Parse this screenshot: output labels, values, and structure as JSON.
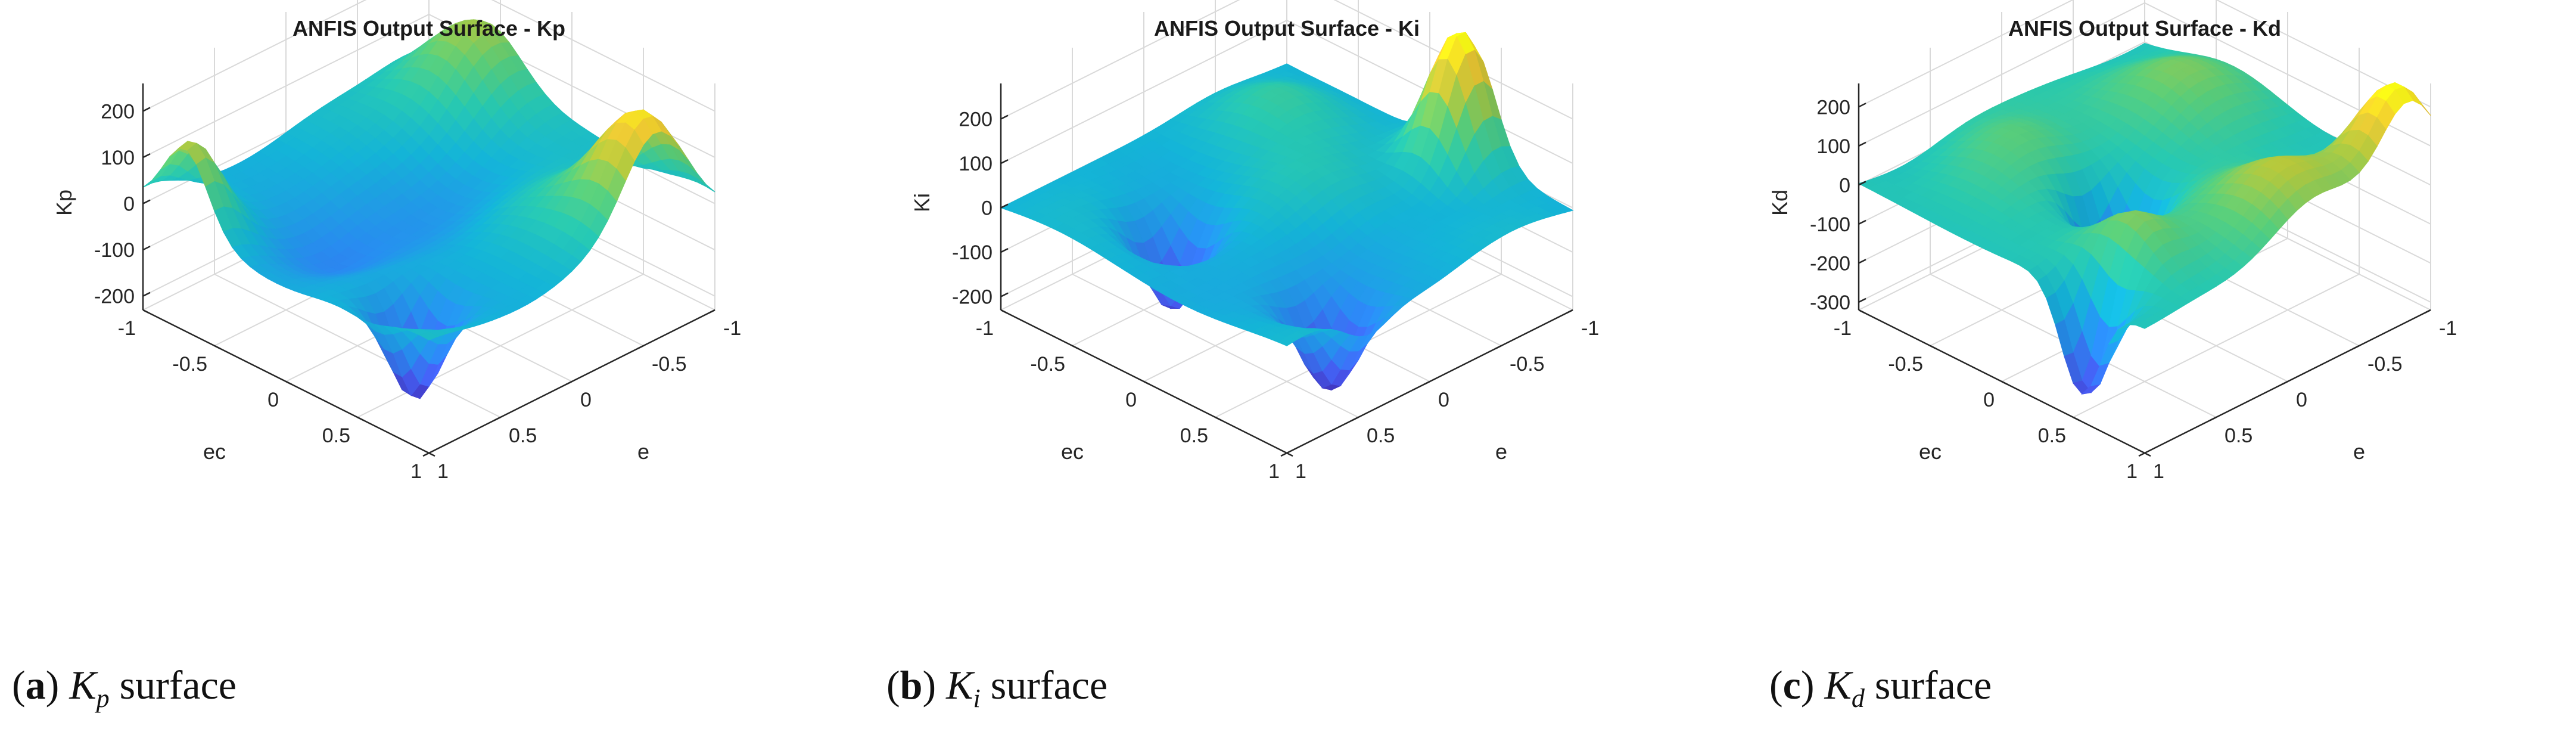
{
  "figure": {
    "captions": [
      {
        "tag": "a",
        "symbol": "K",
        "sub": "p",
        "text": "surface"
      },
      {
        "tag": "b",
        "symbol": "K",
        "sub": "i",
        "text": "surface"
      },
      {
        "tag": "c",
        "symbol": "K",
        "sub": "d",
        "text": "surface"
      }
    ]
  },
  "chart_data": [
    {
      "type": "surface",
      "title": "ANFIS Output Surface - Kp",
      "xlabel": "e",
      "ylabel": "ec",
      "zlabel": "Kp",
      "xlim": [
        -1,
        1
      ],
      "ylim": [
        -1,
        1
      ],
      "zlim": [
        -230,
        260
      ],
      "xticks": [
        "-1",
        "-0.5",
        "0",
        "0.5",
        "1"
      ],
      "yticks": [
        "-1",
        "-0.5",
        "0",
        "0.5",
        "1"
      ],
      "zticks": [
        "-200",
        "-100",
        "0",
        "100",
        "200"
      ],
      "zticks_values": [
        -200,
        -100,
        0,
        100,
        200
      ],
      "bumps": [
        {
          "e": 0.95,
          "ec": -0.7,
          "amplitude": 160,
          "width": 0.15
        },
        {
          "e": -0.6,
          "ec": 0.9,
          "amplitude": 230,
          "width": 0.22
        },
        {
          "e": -0.9,
          "ec": -0.6,
          "amplitude": 170,
          "width": 0.25
        },
        {
          "e": 0.7,
          "ec": 0.6,
          "amplitude": -220,
          "width": 0.14
        },
        {
          "e": 0.0,
          "ec": 0.0,
          "amplitude": -70,
          "width": 0.35
        },
        {
          "e": 0.5,
          "ec": -0.2,
          "amplitude": -80,
          "width": 0.25
        },
        {
          "e": -0.3,
          "ec": 0.4,
          "amplitude": 60,
          "width": 0.3
        }
      ]
    },
    {
      "type": "surface",
      "title": "ANFIS Output Surface - Ki",
      "xlabel": "e",
      "ylabel": "ec",
      "zlabel": "Ki",
      "xlim": [
        -1,
        1
      ],
      "ylim": [
        -1,
        1
      ],
      "zlim": [
        -230,
        280
      ],
      "xticks": [
        "-1",
        "-0.5",
        "0",
        "0.5",
        "1"
      ],
      "yticks": [
        "-1",
        "-0.5",
        "0",
        "0.5",
        "1"
      ],
      "zticks": [
        "-200",
        "-100",
        "0",
        "100",
        "200"
      ],
      "zticks_values": [
        -200,
        -100,
        0,
        100,
        200
      ],
      "bumps": [
        {
          "e": -0.9,
          "ec": 0.3,
          "amplitude": 300,
          "width": 0.16
        },
        {
          "e": 0.5,
          "ec": -0.3,
          "amplitude": -200,
          "width": 0.15
        },
        {
          "e": 0.45,
          "ec": 0.75,
          "amplitude": -210,
          "width": 0.15
        },
        {
          "e": -0.2,
          "ec": 0.0,
          "amplitude": 60,
          "width": 0.3
        },
        {
          "e": 0.1,
          "ec": 0.4,
          "amplitude": -60,
          "width": 0.25
        },
        {
          "e": -0.5,
          "ec": -0.6,
          "amplitude": 60,
          "width": 0.25
        }
      ]
    },
    {
      "type": "surface",
      "title": "ANFIS Output Surface - Kd",
      "xlabel": "e",
      "ylabel": "ec",
      "zlabel": "Kd",
      "xlim": [
        -1,
        1
      ],
      "ylim": [
        -1,
        1
      ],
      "zlim": [
        -320,
        260
      ],
      "xticks": [
        "-1",
        "-0.5",
        "0",
        "0.5",
        "1"
      ],
      "yticks": [
        "-1",
        "-0.5",
        "0",
        "0.5",
        "1"
      ],
      "zticks": [
        "-300",
        "-200",
        "-100",
        "0",
        "100",
        "200"
      ],
      "zticks_values": [
        -300,
        -200,
        -100,
        0,
        100,
        200
      ],
      "bumps": [
        {
          "e": -0.85,
          "ec": 0.9,
          "amplitude": 260,
          "width": 0.2
        },
        {
          "e": 0.2,
          "ec": 0.0,
          "amplitude": -320,
          "width": 0.14
        },
        {
          "e": 0.95,
          "ec": 0.55,
          "amplitude": -290,
          "width": 0.14
        },
        {
          "e": -0.2,
          "ec": 0.8,
          "amplitude": 150,
          "width": 0.3
        },
        {
          "e": 0.6,
          "ec": 0.5,
          "amplitude": 140,
          "width": 0.2
        },
        {
          "e": -0.6,
          "ec": -0.4,
          "amplitude": 100,
          "width": 0.3
        },
        {
          "e": 0.3,
          "ec": -0.6,
          "amplitude": 80,
          "width": 0.25
        }
      ]
    }
  ]
}
